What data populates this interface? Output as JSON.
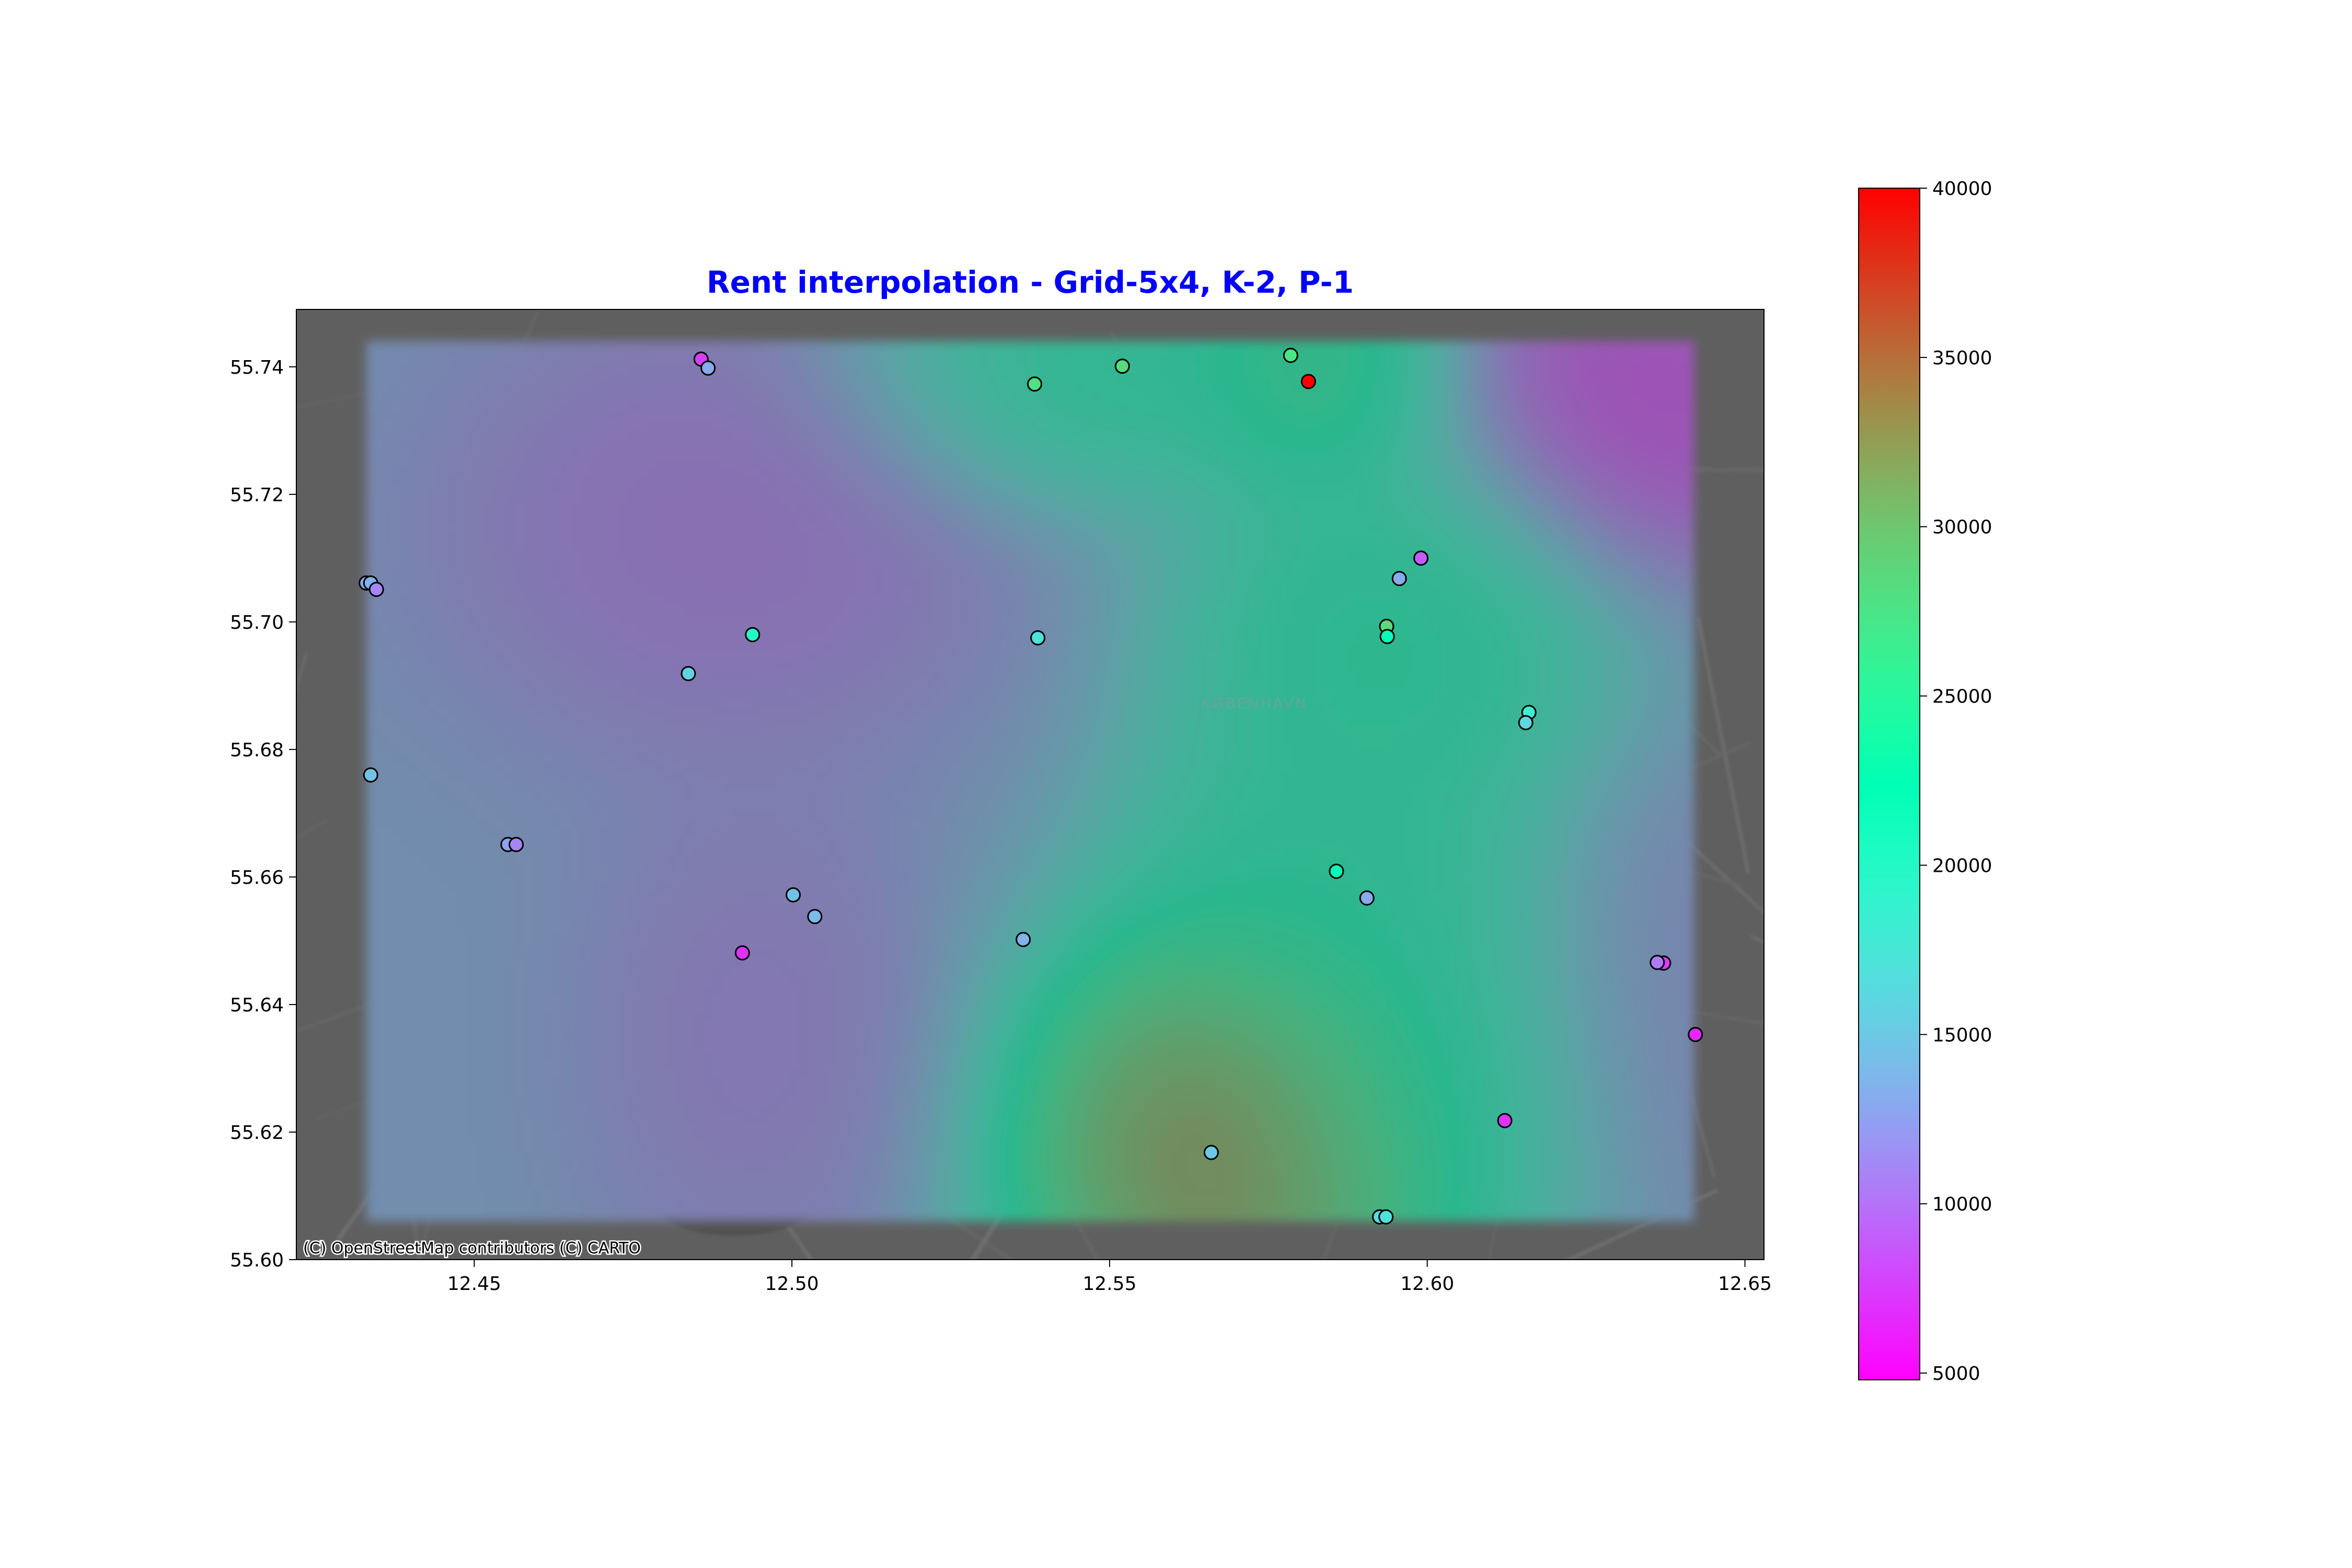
{
  "chart_data": {
    "type": "scatter",
    "title": "Rent interpolation - Grid-5x4, K-2, P-1",
    "title_color": "#0000ff",
    "xlabel": "",
    "ylabel": "",
    "xlim": [
      12.422,
      12.653
    ],
    "ylim": [
      55.6,
      55.749
    ],
    "xticks": [
      12.45,
      12.5,
      12.55,
      12.6,
      12.65
    ],
    "xtick_labels": [
      "12.45",
      "12.50",
      "12.55",
      "12.60",
      "12.65"
    ],
    "yticks": [
      55.6,
      55.62,
      55.64,
      55.66,
      55.68,
      55.7,
      55.72,
      55.74
    ],
    "ytick_labels": [
      "55.60",
      "55.62",
      "55.64",
      "55.66",
      "55.68",
      "55.70",
      "55.72",
      "55.74"
    ],
    "colormap": "rainbow",
    "colorbar": {
      "range": [
        4800,
        40000
      ],
      "ticks": [
        5000,
        10000,
        15000,
        20000,
        25000,
        30000,
        35000,
        40000
      ],
      "tick_labels": [
        "5000",
        "10000",
        "15000",
        "20000",
        "25000",
        "30000",
        "35000",
        "40000"
      ]
    },
    "basemap_attribution": "(C) OpenStreetMap contributors (C) CARTO",
    "basemap_label": "KØBENHAVN",
    "interpolation_extent": {
      "x": [
        12.433,
        12.642
      ],
      "y": [
        55.606,
        55.744
      ]
    },
    "interpolation_kernels": [
      {
        "x": 12.57,
        "y": 55.617,
        "value": 39000,
        "sx": 0.02,
        "sy": 0.021
      },
      {
        "x": 12.583,
        "y": 55.741,
        "value": 27000,
        "sx": 0.012,
        "sy": 0.012
      },
      {
        "x": 12.594,
        "y": 55.697,
        "value": 25000,
        "sx": 0.02,
        "sy": 0.018
      },
      {
        "x": 12.545,
        "y": 55.739,
        "value": 24000,
        "sx": 0.02,
        "sy": 0.012
      },
      {
        "x": 12.6,
        "y": 55.63,
        "value": 22000,
        "sx": 0.018,
        "sy": 0.02
      },
      {
        "x": 12.585,
        "y": 55.662,
        "value": 23000,
        "sx": 0.018,
        "sy": 0.016
      },
      {
        "x": 12.635,
        "y": 55.735,
        "value": 6000,
        "sx": 0.018,
        "sy": 0.016
      },
      {
        "x": 12.49,
        "y": 55.715,
        "value": 9500,
        "sx": 0.025,
        "sy": 0.02
      },
      {
        "x": 12.495,
        "y": 55.635,
        "value": 10500,
        "sx": 0.015,
        "sy": 0.022
      },
      {
        "x": 12.64,
        "y": 55.64,
        "value": 12000,
        "sx": 0.015,
        "sy": 0.02
      }
    ],
    "points": [
      {
        "x": 12.4857,
        "y": 55.7412,
        "value": 7500
      },
      {
        "x": 12.4868,
        "y": 55.7398,
        "value": 13000
      },
      {
        "x": 12.5382,
        "y": 55.7373,
        "value": 28000
      },
      {
        "x": 12.552,
        "y": 55.7401,
        "value": 28500
      },
      {
        "x": 12.5785,
        "y": 55.7418,
        "value": 27500
      },
      {
        "x": 12.5813,
        "y": 55.7377,
        "value": 40000
      },
      {
        "x": 12.433,
        "y": 55.7061,
        "value": 13000
      },
      {
        "x": 12.4337,
        "y": 55.7061,
        "value": 13500
      },
      {
        "x": 12.4346,
        "y": 55.7051,
        "value": 11000
      },
      {
        "x": 12.599,
        "y": 55.71,
        "value": 9000
      },
      {
        "x": 12.5956,
        "y": 55.7068,
        "value": 13000
      },
      {
        "x": 12.5936,
        "y": 55.6993,
        "value": 28500
      },
      {
        "x": 12.5937,
        "y": 55.6977,
        "value": 22000
      },
      {
        "x": 12.4938,
        "y": 55.698,
        "value": 20000
      },
      {
        "x": 12.5387,
        "y": 55.6975,
        "value": 17000
      },
      {
        "x": 12.4837,
        "y": 55.6919,
        "value": 15500
      },
      {
        "x": 12.616,
        "y": 55.6858,
        "value": 18000
      },
      {
        "x": 12.6155,
        "y": 55.6842,
        "value": 16000
      },
      {
        "x": 12.4337,
        "y": 55.676,
        "value": 14500
      },
      {
        "x": 12.4553,
        "y": 55.6651,
        "value": 12500
      },
      {
        "x": 12.4566,
        "y": 55.6651,
        "value": 11000
      },
      {
        "x": 12.5857,
        "y": 55.6609,
        "value": 22000
      },
      {
        "x": 12.5905,
        "y": 55.6567,
        "value": 13000
      },
      {
        "x": 12.5002,
        "y": 55.6572,
        "value": 14500
      },
      {
        "x": 12.5036,
        "y": 55.6538,
        "value": 14000
      },
      {
        "x": 12.5364,
        "y": 55.6502,
        "value": 13500
      },
      {
        "x": 12.4922,
        "y": 55.6481,
        "value": 7000
      },
      {
        "x": 12.6372,
        "y": 55.6465,
        "value": 7500
      },
      {
        "x": 12.6362,
        "y": 55.6466,
        "value": 10500
      },
      {
        "x": 12.6422,
        "y": 55.6353,
        "value": 6500
      },
      {
        "x": 12.6122,
        "y": 55.6218,
        "value": 7000
      },
      {
        "x": 12.566,
        "y": 55.6168,
        "value": 15000
      },
      {
        "x": 12.5925,
        "y": 55.6067,
        "value": 16000
      },
      {
        "x": 12.5935,
        "y": 55.6067,
        "value": 17000
      }
    ]
  }
}
